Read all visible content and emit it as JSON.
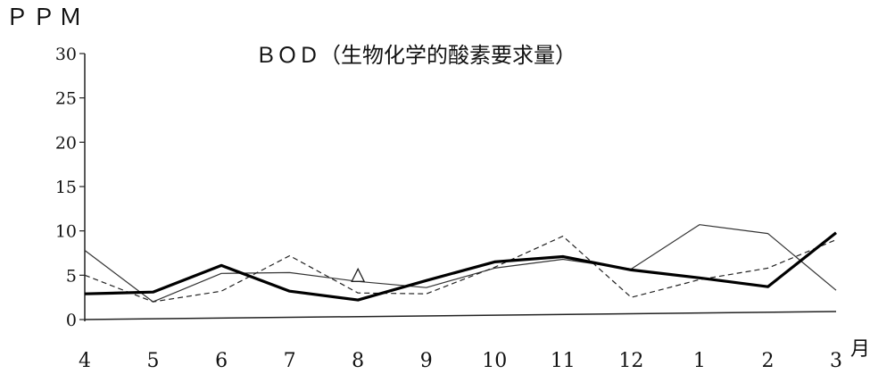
{
  "chart_data": {
    "type": "line",
    "title": "ＢＯＤ（生物化学的酸素要求量）",
    "ylabel": "ＰＰＭ",
    "xlabel": "",
    "x_unit": "月",
    "categories": [
      "4",
      "5",
      "6",
      "7",
      "8",
      "9",
      "10",
      "11",
      "12",
      "1",
      "2",
      "3"
    ],
    "yticks": [
      "0",
      "5",
      "10",
      "15",
      "20",
      "25",
      "30"
    ],
    "ylim": [
      0,
      30
    ],
    "grid": false,
    "legend": "none",
    "series": [
      {
        "style": "thin-solid",
        "color": "#333333",
        "values": [
          7.8,
          2.0,
          5.2,
          5.3,
          4.3,
          3.6,
          5.8,
          6.8,
          5.7,
          10.7,
          9.7,
          3.3
        ]
      },
      {
        "style": "dashed",
        "color": "#222222",
        "values": [
          5.0,
          2.0,
          3.2,
          7.2,
          3.0,
          2.9,
          5.9,
          9.4,
          2.5,
          4.5,
          5.8,
          9.0
        ]
      },
      {
        "style": "thick-solid",
        "color": "#000000",
        "values": [
          2.9,
          3.1,
          6.1,
          3.2,
          2.2,
          4.4,
          6.5,
          7.1,
          5.6,
          4.7,
          3.7,
          9.8
        ]
      }
    ],
    "annotations": [
      {
        "shape": "triangle",
        "x": "8",
        "y": 4.8
      }
    ]
  }
}
